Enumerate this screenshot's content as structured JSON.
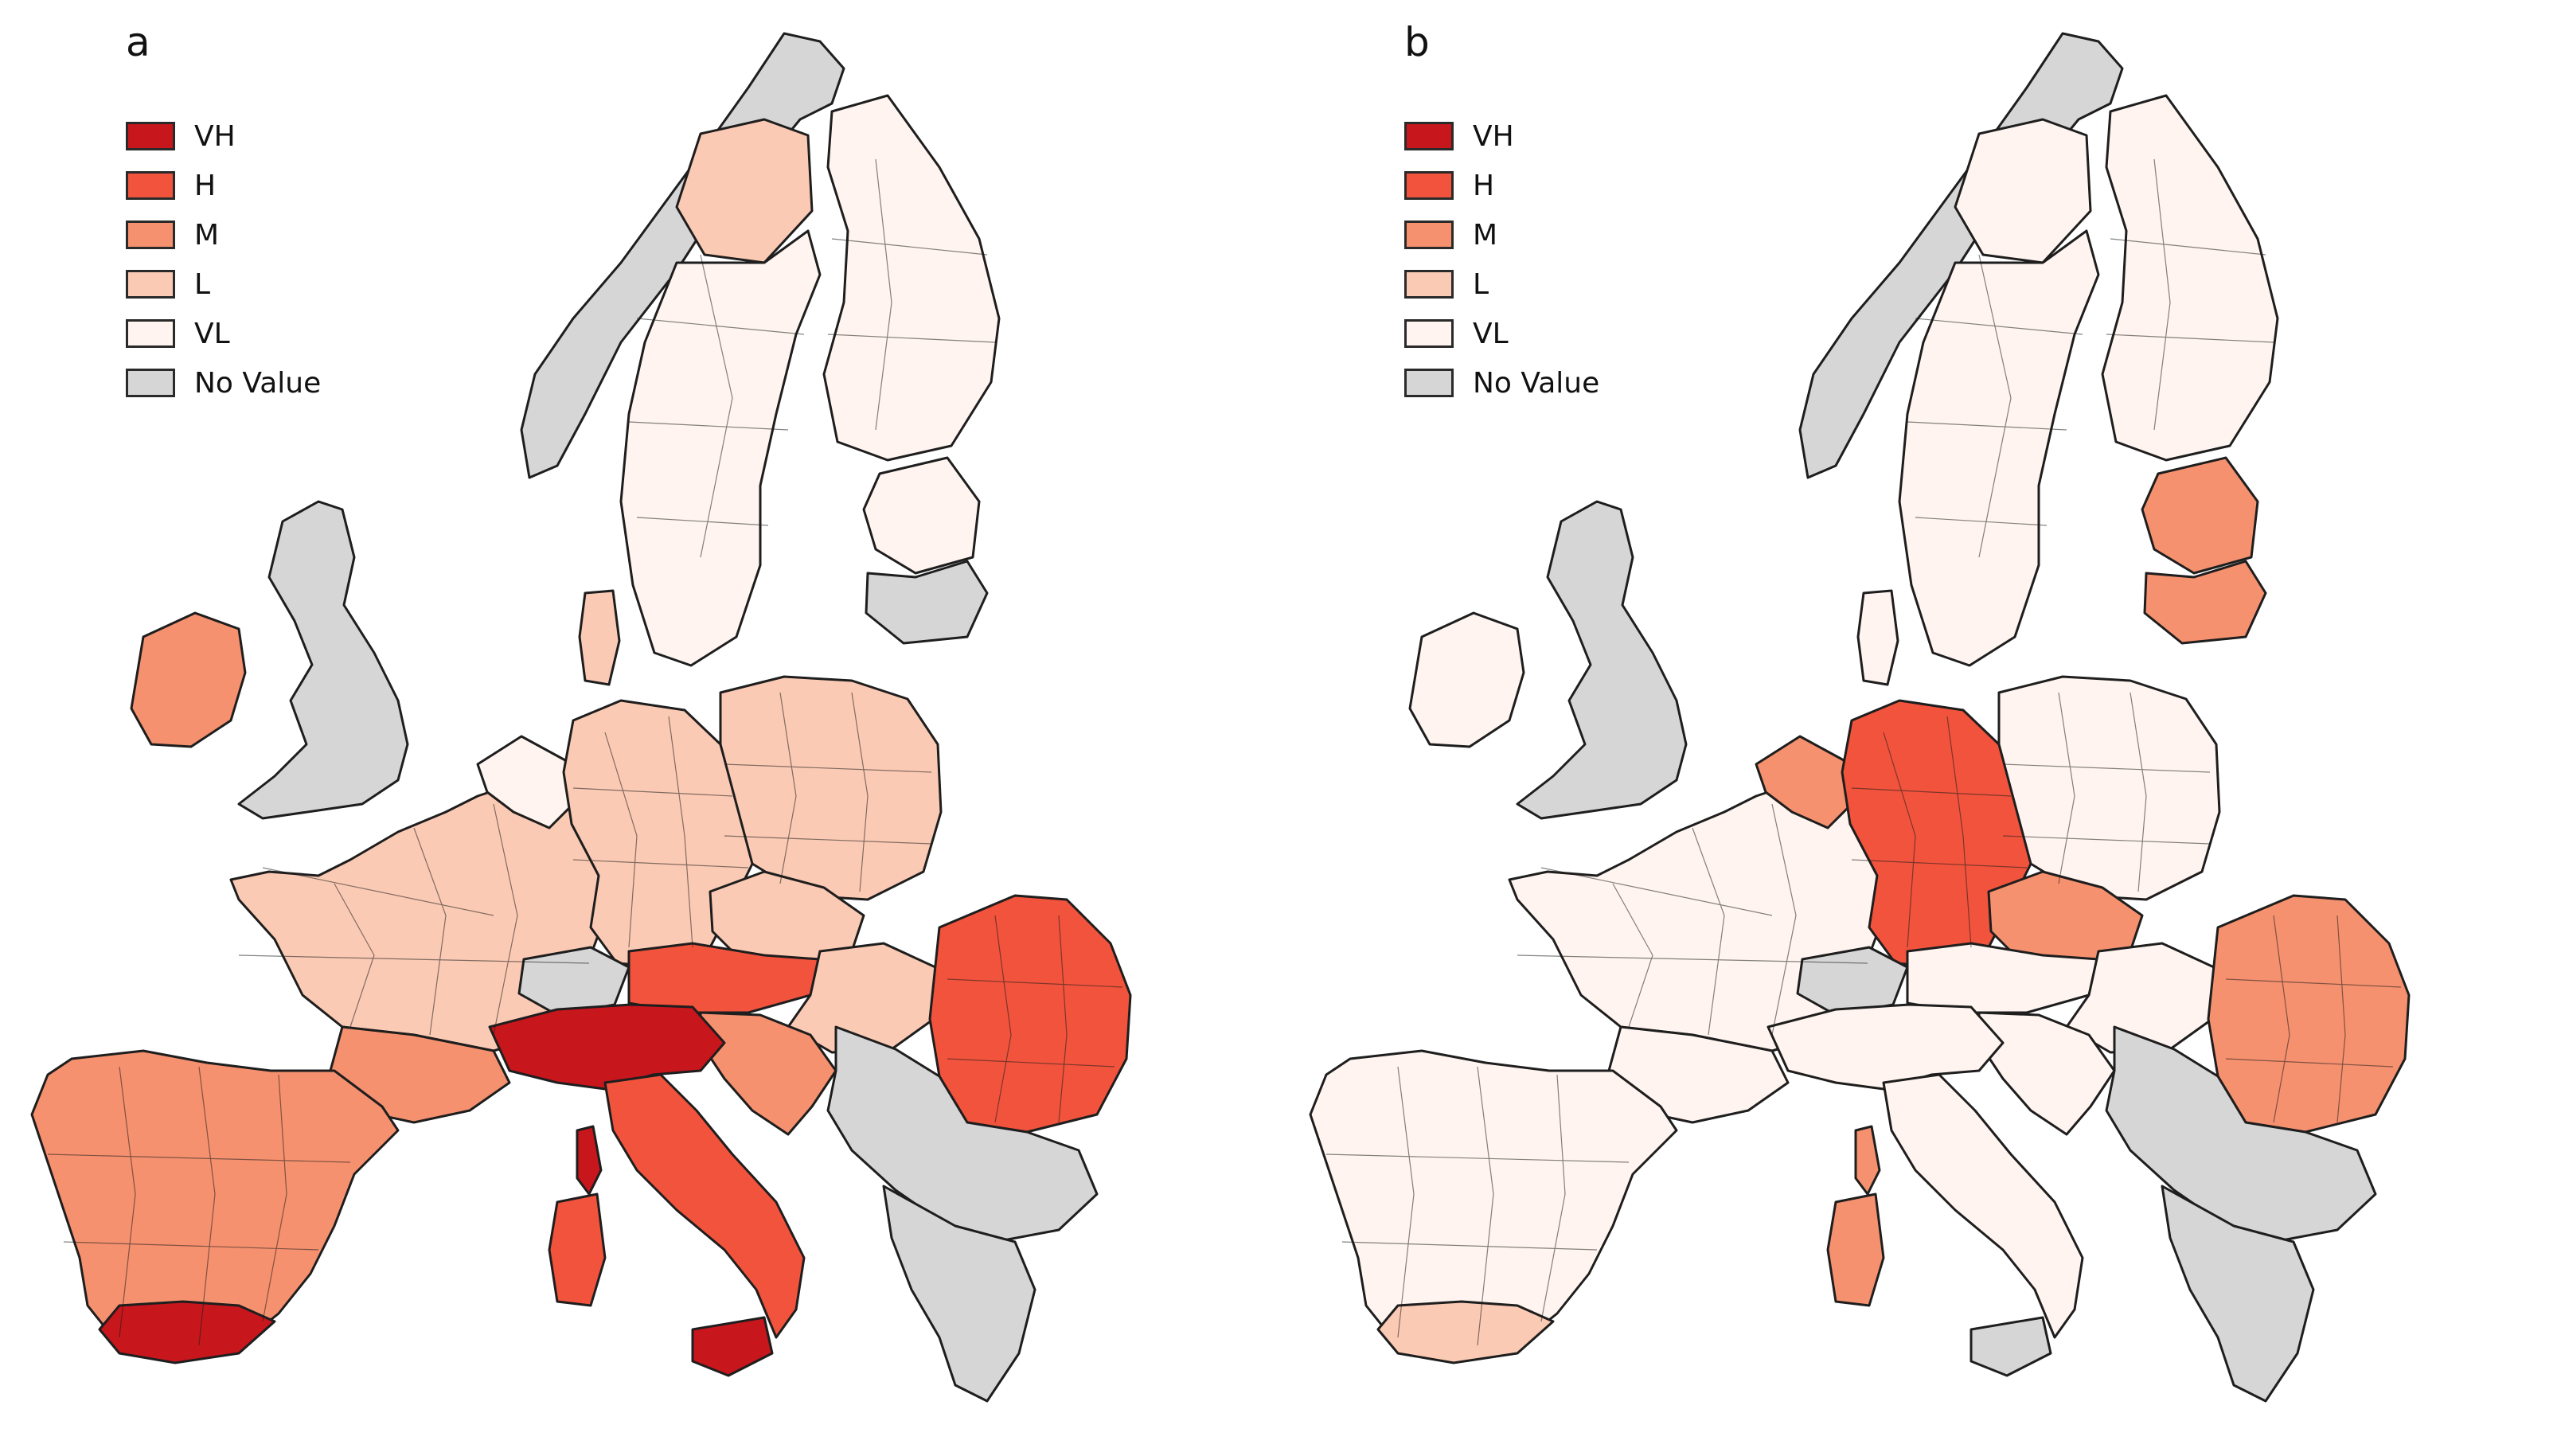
{
  "colors": {
    "VH": "#c8161d",
    "H": "#f2533c",
    "M": "#f6916f",
    "L": "#fbcab4",
    "VL": "#fff4ef",
    "NA": "#d6d6d6",
    "border": "#1e1e1e"
  },
  "panels": [
    {
      "label": "a",
      "legend": [
        {
          "class": "VH",
          "text": "VH"
        },
        {
          "class": "H",
          "text": "H"
        },
        {
          "class": "M",
          "text": "M"
        },
        {
          "class": "L",
          "text": "L"
        },
        {
          "class": "VL",
          "text": "VL"
        },
        {
          "class": "NA",
          "text": "No Value"
        }
      ],
      "regions": {
        "iberia": "M",
        "iberia_south": "VH",
        "france": "L",
        "benelux": "VL",
        "germany": "L",
        "poland": "L",
        "czechia": "L",
        "austria": "H",
        "italy_north": "VH",
        "italy_south": "H",
        "sardinia": "H",
        "sicily": "VH",
        "corsica": "VH",
        "switzerland": "NA",
        "hungary": "L",
        "romania": "H",
        "balkans": "NA",
        "greece": "NA",
        "slovenia_croatia": "M",
        "uk": "NA",
        "ireland": "M",
        "norway": "NA",
        "sweden": "VL",
        "finland": "VL",
        "baltics": "VL",
        "lithuania": "NA",
        "denmark": "L",
        "sweden_north": "L",
        "france_south": "M"
      }
    },
    {
      "label": "b",
      "legend": [
        {
          "class": "VH",
          "text": "VH"
        },
        {
          "class": "H",
          "text": "H"
        },
        {
          "class": "M",
          "text": "M"
        },
        {
          "class": "L",
          "text": "L"
        },
        {
          "class": "VL",
          "text": "VL"
        },
        {
          "class": "NA",
          "text": "No Value"
        }
      ],
      "regions": {
        "iberia": "VL",
        "iberia_south": "L",
        "france": "VL",
        "benelux": "M",
        "germany": "H",
        "poland": "VL",
        "czechia": "M",
        "austria": "VL",
        "italy_north": "VL",
        "italy_south": "VL",
        "sardinia": "M",
        "sicily": "NA",
        "corsica": "M",
        "switzerland": "NA",
        "hungary": "VL",
        "romania": "M",
        "balkans": "NA",
        "greece": "NA",
        "slovenia_croatia": "VL",
        "uk": "NA",
        "ireland": "VL",
        "norway": "NA",
        "sweden": "VL",
        "finland": "VL",
        "baltics": "M",
        "lithuania": "M",
        "denmark": "VL",
        "sweden_north": "VL",
        "france_south": "VL"
      }
    }
  ]
}
